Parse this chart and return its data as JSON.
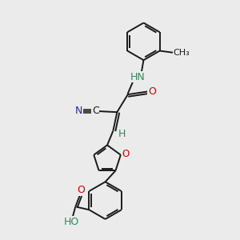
{
  "background_color": "#ebebeb",
  "bond_color": "#1a1a1a",
  "figsize": [
    3.0,
    3.0
  ],
  "dpi": 100,
  "colors": {
    "N": "#2222cc",
    "O": "#cc0000",
    "HN": "#2e8b57",
    "H": "#2e8b57",
    "HO": "#2e8b57",
    "C": "#1a1a1a",
    "CH3": "#1a1a1a"
  },
  "scale": 1.0
}
